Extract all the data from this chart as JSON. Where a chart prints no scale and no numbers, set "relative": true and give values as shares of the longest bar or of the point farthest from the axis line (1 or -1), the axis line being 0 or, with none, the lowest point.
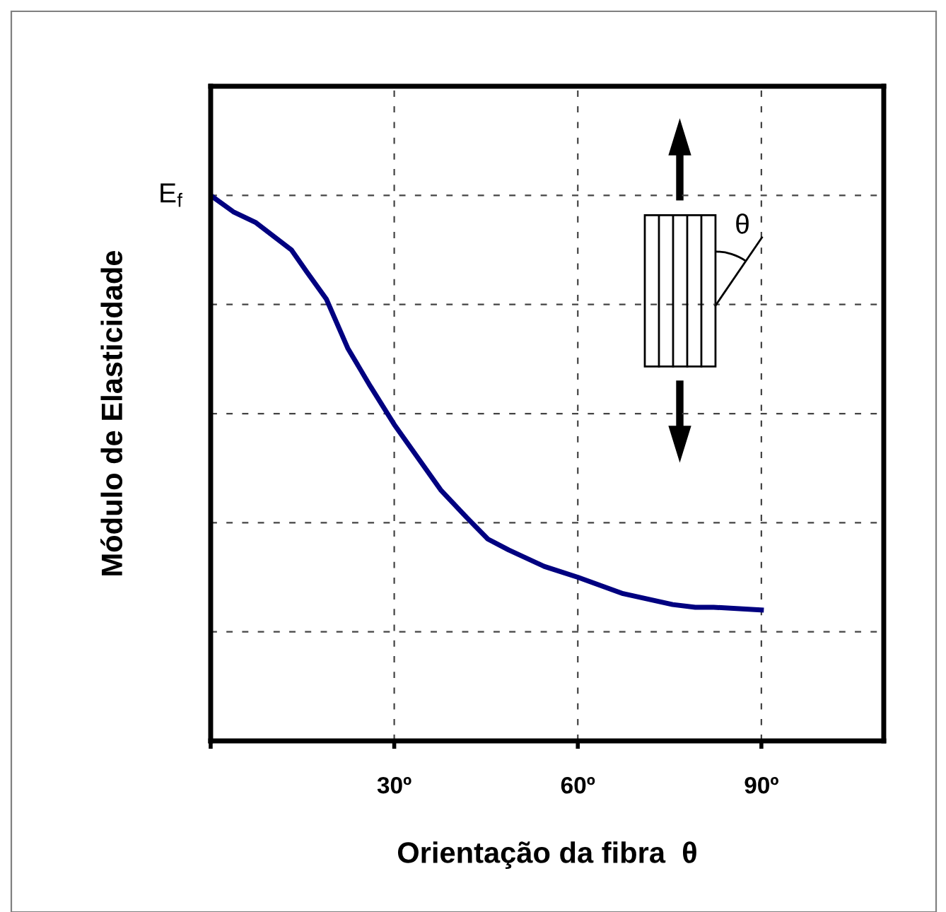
{
  "chart_data": {
    "type": "line",
    "relative": true,
    "xlabel": "Orientação da fibra  θ",
    "ylabel": "Módulo de Elasticidade",
    "xlim": [
      0,
      110
    ],
    "xticks": [
      {
        "value": 0,
        "label": null
      },
      {
        "value": 30,
        "label": "30º"
      },
      {
        "value": 60,
        "label": "60º"
      },
      {
        "value": 90,
        "label": "90º"
      }
    ],
    "grid": true,
    "marker": "none",
    "line_style": "solid",
    "annotations": [
      "θ",
      {
        "text": "E$_{f}$",
        "x": 0,
        "y": 1.0
      }
    ],
    "series": [
      {
        "color": "#000080",
        "x": [
          0,
          3.7,
          7.4,
          13.2,
          15.7,
          18.9,
          22.4,
          26.1,
          30.0,
          37.6,
          41.8,
          45.3,
          48.7,
          54.5,
          60.0,
          67.4,
          75.5,
          79.2,
          82.2,
          90
        ],
        "values": [
          1.0,
          0.97,
          0.95,
          0.9,
          0.86,
          0.81,
          0.72,
          0.65,
          0.58,
          0.46,
          0.41,
          0.37,
          0.35,
          0.32,
          0.3,
          0.27,
          0.25,
          0.245,
          0.245,
          0.24
        ]
      }
    ]
  }
}
